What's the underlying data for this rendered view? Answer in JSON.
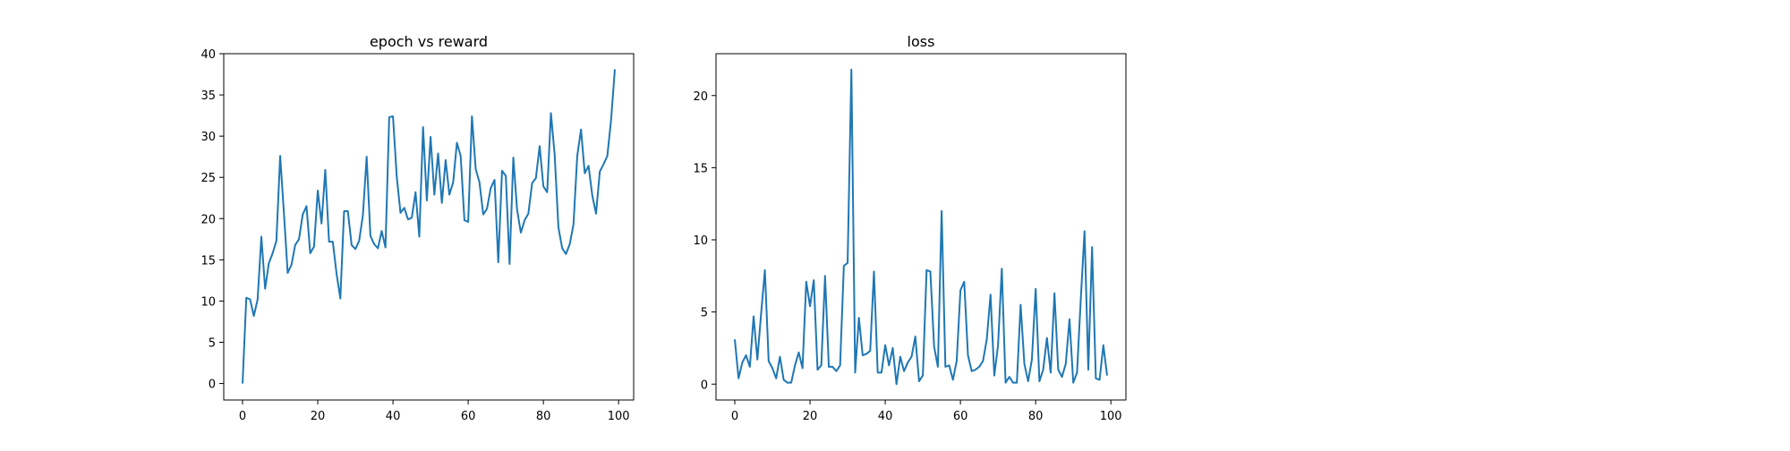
{
  "colors": {
    "line": "#1f77b4",
    "axes": "#000000",
    "background": "#ffffff"
  },
  "chart_data": [
    {
      "type": "line",
      "title": "epoch vs reward",
      "xlabel": "",
      "ylabel": "",
      "xlim": [
        -5,
        104
      ],
      "ylim": [
        -2,
        40
      ],
      "xticks": [
        0,
        20,
        40,
        60,
        80,
        100
      ],
      "yticks": [
        0,
        5,
        10,
        15,
        20,
        25,
        30,
        35,
        40
      ],
      "grid": false,
      "legend": "none",
      "x": [
        0,
        1,
        2,
        3,
        4,
        5,
        6,
        7,
        8,
        9,
        10,
        11,
        12,
        13,
        14,
        15,
        16,
        17,
        18,
        19,
        20,
        21,
        22,
        23,
        24,
        25,
        26,
        27,
        28,
        29,
        30,
        31,
        32,
        33,
        34,
        35,
        36,
        37,
        38,
        39,
        40,
        41,
        42,
        43,
        44,
        45,
        46,
        47,
        48,
        49,
        50,
        51,
        52,
        53,
        54,
        55,
        56,
        57,
        58,
        59,
        60,
        61,
        62,
        63,
        64,
        65,
        66,
        67,
        68,
        69,
        70,
        71,
        72,
        73,
        74,
        75,
        76,
        77,
        78,
        79,
        80,
        81,
        82,
        83,
        84,
        85,
        86,
        87,
        88,
        89,
        90,
        91,
        92,
        93,
        94,
        95,
        96,
        97,
        98,
        99
      ],
      "series": [
        {
          "values": [
            0.0,
            10.4,
            10.2,
            8.2,
            10.2,
            17.8,
            11.5,
            14.6,
            15.8,
            17.3,
            27.6,
            20.7,
            13.4,
            14.4,
            16.8,
            17.5,
            20.5,
            21.5,
            15.8,
            16.6,
            23.4,
            19.4,
            25.9,
            17.2,
            17.2,
            13.3,
            10.3,
            20.9,
            20.9,
            16.8,
            16.3,
            17.3,
            20.4,
            27.5,
            17.9,
            16.9,
            16.4,
            18.5,
            16.5,
            32.3,
            32.4,
            25.1,
            20.7,
            21.3,
            19.9,
            20.1,
            23.2,
            17.8,
            31.1,
            22.2,
            29.9,
            22.9,
            27.9,
            21.9,
            27.1,
            22.9,
            24.4,
            29.2,
            27.6,
            19.8,
            19.6,
            32.4,
            26.0,
            24.4,
            20.5,
            21.2,
            23.7,
            24.7,
            14.7,
            25.8,
            25.2,
            14.5,
            27.4,
            21.1,
            18.3,
            19.8,
            20.6,
            24.3,
            24.9,
            28.8,
            23.9,
            23.2,
            32.8,
            27.7,
            18.9,
            16.4,
            15.7,
            16.9,
            19.3,
            27.6,
            30.8,
            25.5,
            26.4,
            22.8,
            20.6,
            25.7,
            26.6,
            27.6,
            32.0,
            38.1
          ]
        }
      ]
    },
    {
      "type": "line",
      "title": "loss",
      "xlabel": "",
      "ylabel": "",
      "xlim": [
        -5,
        104
      ],
      "ylim": [
        -1.1,
        22.9
      ],
      "xticks": [
        0,
        20,
        40,
        60,
        80,
        100
      ],
      "yticks": [
        0,
        5,
        10,
        15,
        20
      ],
      "grid": false,
      "legend": "none",
      "x": [
        0,
        1,
        2,
        3,
        4,
        5,
        6,
        7,
        8,
        9,
        10,
        11,
        12,
        13,
        14,
        15,
        16,
        17,
        18,
        19,
        20,
        21,
        22,
        23,
        24,
        25,
        26,
        27,
        28,
        29,
        30,
        31,
        32,
        33,
        34,
        35,
        36,
        37,
        38,
        39,
        40,
        41,
        42,
        43,
        44,
        45,
        46,
        47,
        48,
        49,
        50,
        51,
        52,
        53,
        54,
        55,
        56,
        57,
        58,
        59,
        60,
        61,
        62,
        63,
        64,
        65,
        66,
        67,
        68,
        69,
        70,
        71,
        72,
        73,
        74,
        75,
        76,
        77,
        78,
        79,
        80,
        81,
        82,
        83,
        84,
        85,
        86,
        87,
        88,
        89,
        90,
        91,
        92,
        93,
        94,
        95,
        96,
        97,
        98,
        99
      ],
      "series": [
        {
          "values": [
            3.1,
            0.4,
            1.5,
            2.0,
            1.2,
            4.7,
            1.7,
            4.9,
            7.9,
            1.6,
            1.1,
            0.4,
            1.9,
            0.3,
            0.1,
            0.1,
            1.3,
            2.2,
            1.1,
            7.1,
            5.4,
            7.2,
            1.0,
            1.3,
            7.5,
            1.2,
            1.2,
            0.9,
            1.3,
            8.2,
            8.4,
            21.8,
            0.8,
            4.6,
            2.0,
            2.1,
            2.3,
            7.8,
            0.8,
            0.8,
            2.7,
            1.3,
            2.5,
            0.0,
            1.9,
            0.9,
            1.5,
            1.9,
            3.3,
            0.2,
            0.6,
            7.9,
            7.8,
            2.6,
            1.2,
            12.0,
            1.2,
            1.3,
            0.3,
            1.6,
            6.5,
            7.1,
            2.0,
            0.9,
            1.0,
            1.2,
            1.6,
            3.1,
            6.2,
            0.6,
            2.7,
            8.0,
            0.1,
            0.5,
            0.1,
            0.1,
            5.5,
            1.4,
            0.2,
            1.7,
            6.6,
            0.2,
            1.0,
            3.2,
            0.8,
            6.3,
            1.0,
            0.5,
            1.4,
            4.5,
            0.1,
            0.8,
            5.9,
            10.6,
            1.0,
            9.5,
            0.4,
            0.3,
            2.7,
            0.6
          ]
        }
      ]
    }
  ]
}
